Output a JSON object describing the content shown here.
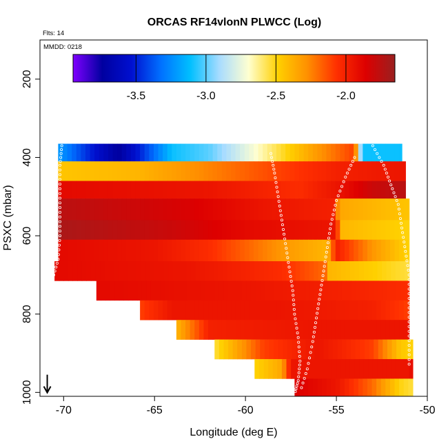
{
  "chart_data": {
    "type": "heatmap",
    "title": "ORCAS RF14vlonN PLWCC (Log)",
    "annotations": {
      "flights": "Flts: 14",
      "date": "MMDD: 0218"
    },
    "xlabel": "Longitude (deg E)",
    "ylabel": "PSXC (mbar)",
    "xlim": [
      -71.3,
      -50
    ],
    "ylim": [
      1010,
      100
    ],
    "x_ticks": [
      -70,
      -65,
      -60,
      -55,
      -50
    ],
    "x_tick_labels": [
      "-70",
      "-65",
      "-60",
      "-55",
      "-50"
    ],
    "y_ticks": [
      200,
      400,
      600,
      800,
      1000
    ],
    "y_tick_labels": [
      "200",
      "400",
      "600",
      "800",
      "1000"
    ],
    "colorbar": {
      "orientation": "horizontal",
      "range": [
        -3.95,
        -1.65
      ],
      "ticks": [
        -3.5,
        -3.0,
        -2.5,
        -2.0
      ],
      "tick_labels": [
        "-3.5",
        "-3.0",
        "-2.5",
        "-2.0"
      ],
      "colors": [
        "#7f00ff",
        "#0000a0",
        "#0010d0",
        "#0070ff",
        "#00bfff",
        "#a8dcff",
        "#ffffd0",
        "#ffd000",
        "#ff9000",
        "#ff3000",
        "#dd0000",
        "#9a2020"
      ]
    },
    "arrow_marker": {
      "x": -70.9,
      "p": 990
    },
    "bands": [
      {
        "p_top": 365,
        "p_bot": 410,
        "x_start": -70.3,
        "x_end": -51.4,
        "stops": [
          [
            -70.3,
            -3.2
          ],
          [
            -67,
            -3.75
          ],
          [
            -64,
            -3.1
          ],
          [
            -62,
            -3.0
          ],
          [
            -59,
            -2.65
          ],
          [
            -56,
            -2.3
          ],
          [
            -54,
            -2.1
          ],
          [
            -53.6,
            -3.1
          ],
          [
            -51.4,
            -3.1
          ]
        ]
      },
      {
        "p_top": 410,
        "p_bot": 460,
        "x_start": -70.3,
        "x_end": -51.2,
        "stops": [
          [
            -70.3,
            -2.45
          ],
          [
            -66,
            -2.4
          ],
          [
            -62,
            -2.25
          ],
          [
            -58,
            -2.1
          ],
          [
            -55,
            -2.0
          ],
          [
            -51.2,
            -1.95
          ]
        ]
      },
      {
        "p_top": 460,
        "p_bot": 505,
        "x_start": -70.3,
        "x_end": -51.2,
        "stops": [
          [
            -70.3,
            -1.9
          ],
          [
            -62,
            -1.95
          ],
          [
            -57,
            -2.05
          ],
          [
            -55,
            -1.95
          ],
          [
            -53,
            -1.8
          ],
          [
            -51.2,
            -1.75
          ]
        ]
      },
      {
        "p_top": 505,
        "p_bot": 560,
        "x_start": -70.3,
        "x_end": -51.0,
        "stops": [
          [
            -70.3,
            -1.75
          ],
          [
            -63,
            -1.85
          ],
          [
            -59,
            -1.95
          ],
          [
            -55,
            -2.0
          ],
          [
            -54.9,
            -2.35
          ],
          [
            -51.0,
            -2.45
          ]
        ]
      },
      {
        "p_top": 560,
        "p_bot": 610,
        "x_start": -70.3,
        "x_end": -51.0,
        "stops": [
          [
            -70.3,
            -1.7
          ],
          [
            -64,
            -1.8
          ],
          [
            -60,
            -1.9
          ],
          [
            -55,
            -1.95
          ],
          [
            -54.8,
            -2.4
          ],
          [
            -51.0,
            -2.5
          ]
        ]
      },
      {
        "p_top": 610,
        "p_bot": 665,
        "x_start": -70.3,
        "x_end": -51.0,
        "stops": [
          [
            -70.3,
            -1.9
          ],
          [
            -65,
            -1.95
          ],
          [
            -62,
            -2.05
          ],
          [
            -58,
            -2.3
          ],
          [
            -55.5,
            -2.4
          ],
          [
            -55.0,
            -2.0
          ],
          [
            -53,
            -2.3
          ],
          [
            -51.0,
            -2.5
          ]
        ]
      },
      {
        "p_top": 665,
        "p_bot": 715,
        "x_start": -70.5,
        "x_end": -51.0,
        "stops": [
          [
            -70.5,
            -1.9
          ],
          [
            -63,
            -1.95
          ],
          [
            -58,
            -2.05
          ],
          [
            -55.5,
            -2.2
          ],
          [
            -55.4,
            -2.4
          ],
          [
            -51.0,
            -2.55
          ]
        ]
      },
      {
        "p_top": 715,
        "p_bot": 765,
        "x_start": -68.2,
        "x_end": -51.0,
        "stops": [
          [
            -68.2,
            -1.9
          ],
          [
            -60,
            -1.95
          ],
          [
            -55,
            -2.0
          ],
          [
            -51.0,
            -2.05
          ]
        ]
      },
      {
        "p_top": 765,
        "p_bot": 815,
        "x_start": -65.8,
        "x_end": -51.0,
        "stops": [
          [
            -65.8,
            -2.1
          ],
          [
            -64,
            -1.95
          ],
          [
            -58,
            -1.95
          ],
          [
            -53,
            -2.0
          ],
          [
            -51.0,
            -2.1
          ]
        ]
      },
      {
        "p_top": 815,
        "p_bot": 865,
        "x_start": -63.8,
        "x_end": -51.0,
        "stops": [
          [
            -63.8,
            -2.4
          ],
          [
            -62,
            -2.0
          ],
          [
            -56,
            -1.95
          ],
          [
            -51.0,
            -1.95
          ]
        ]
      },
      {
        "p_top": 865,
        "p_bot": 915,
        "x_start": -61.7,
        "x_end": -50.8,
        "stops": [
          [
            -61.7,
            -2.55
          ],
          [
            -59,
            -2.1
          ],
          [
            -56,
            -1.95
          ],
          [
            -53,
            -2.1
          ],
          [
            -51.5,
            -2.45
          ],
          [
            -50.8,
            -2.5
          ]
        ]
      },
      {
        "p_top": 915,
        "p_bot": 965,
        "x_start": -59.5,
        "x_end": -50.8,
        "stops": [
          [
            -59.5,
            -2.5
          ],
          [
            -58,
            -2.35
          ],
          [
            -57.5,
            -1.95
          ],
          [
            -51,
            -1.95
          ],
          [
            -50.8,
            -1.9
          ]
        ]
      },
      {
        "p_top": 965,
        "p_bot": 1010,
        "x_start": -57.3,
        "x_end": -50.8,
        "stops": [
          [
            -57.3,
            -1.85
          ],
          [
            -55,
            -1.95
          ],
          [
            -53,
            -2.2
          ],
          [
            -51.5,
            -2.5
          ],
          [
            -50.8,
            -2.55
          ]
        ]
      }
    ],
    "flight_tracks": [
      {
        "points": [
          [
            -70.1,
            370
          ],
          [
            -70.2,
            420
          ],
          [
            -70.2,
            480
          ],
          [
            -70.2,
            540
          ],
          [
            -70.2,
            600
          ],
          [
            -70.3,
            660
          ],
          [
            -70.6,
            710
          ]
        ]
      },
      {
        "points": [
          [
            -58.6,
            390
          ],
          [
            -58.4,
            440
          ],
          [
            -58.2,
            500
          ],
          [
            -58.0,
            560
          ],
          [
            -57.8,
            620
          ],
          [
            -57.6,
            680
          ],
          [
            -57.4,
            740
          ],
          [
            -57.3,
            800
          ],
          [
            -57.1,
            860
          ],
          [
            -57.0,
            920
          ],
          [
            -57.1,
            970
          ],
          [
            -57.3,
            1005
          ]
        ]
      },
      {
        "points": [
          [
            -54.0,
            400
          ],
          [
            -54.5,
            450
          ],
          [
            -55.0,
            510
          ],
          [
            -55.3,
            570
          ],
          [
            -55.5,
            630
          ],
          [
            -55.7,
            690
          ],
          [
            -55.9,
            750
          ],
          [
            -56.1,
            810
          ],
          [
            -56.3,
            870
          ],
          [
            -56.6,
            940
          ],
          [
            -57.0,
            1000
          ]
        ]
      },
      {
        "points": [
          [
            -53.0,
            370
          ],
          [
            -52.4,
            420
          ],
          [
            -52.0,
            470
          ],
          [
            -51.6,
            520
          ],
          [
            -51.4,
            580
          ],
          [
            -51.2,
            640
          ],
          [
            -51.0,
            700
          ],
          [
            -51.0,
            760
          ],
          [
            -51.0,
            820
          ],
          [
            -51.0,
            880
          ],
          [
            -51.0,
            940
          ]
        ]
      }
    ]
  }
}
